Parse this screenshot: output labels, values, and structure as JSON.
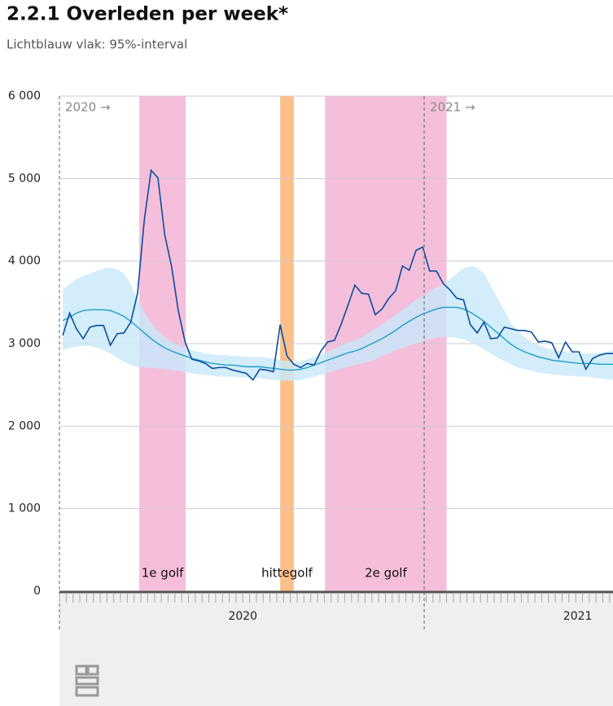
{
  "chart_data": {
    "type": "line",
    "title": "2.2.1 Overleden per week*",
    "subtitle": "Lichtblauw vlak: 95%-interval",
    "x": [
      1,
      2,
      3,
      4,
      5,
      6,
      7,
      8,
      9,
      10,
      11,
      12,
      13,
      14,
      15,
      16,
      17,
      18,
      19,
      20,
      21,
      22,
      23,
      24,
      25,
      26,
      27,
      28,
      29,
      30,
      31,
      32,
      33,
      34,
      35,
      36,
      37,
      38,
      39,
      40,
      41,
      42,
      43,
      44,
      45,
      46,
      47,
      48,
      49,
      50,
      51,
      52,
      53,
      54,
      55,
      56,
      57,
      58,
      59,
      60,
      61,
      62,
      63,
      64,
      65,
      66,
      67,
      68,
      69,
      70,
      71,
      72,
      73,
      74,
      75,
      76,
      77,
      78,
      79,
      80,
      81,
      82
    ],
    "series": [
      {
        "color": "#0b4d9e",
        "values": [
          3100,
          3370,
          3180,
          3060,
          3200,
          3220,
          3220,
          2980,
          3120,
          3130,
          3260,
          3610,
          4500,
          5100,
          5010,
          4320,
          3940,
          3400,
          3020,
          2810,
          2790,
          2760,
          2700,
          2710,
          2710,
          2680,
          2660,
          2640,
          2560,
          2690,
          2680,
          2660,
          3230,
          2850,
          2750,
          2710,
          2760,
          2740,
          2910,
          3020,
          3040,
          3240,
          3470,
          3710,
          3610,
          3600,
          3350,
          3420,
          3550,
          3640,
          3940,
          3890,
          4130,
          4170,
          3880,
          3880,
          3730,
          3650,
          3550,
          3530,
          3230,
          3130,
          3260,
          3060,
          3070,
          3200,
          3180,
          3160,
          3160,
          3140,
          3020,
          3030,
          3010,
          2830,
          3020,
          2900,
          2900,
          2690,
          2820,
          2860,
          2880,
          2880
        ]
      },
      {
        "color": "#1ba0c8",
        "values": [
          3280,
          3320,
          3370,
          3400,
          3410,
          3410,
          3410,
          3400,
          3370,
          3330,
          3270,
          3200,
          3130,
          3060,
          3000,
          2950,
          2910,
          2880,
          2850,
          2820,
          2800,
          2780,
          2760,
          2750,
          2740,
          2740,
          2730,
          2720,
          2720,
          2720,
          2710,
          2700,
          2690,
          2680,
          2680,
          2690,
          2710,
          2740,
          2770,
          2800,
          2830,
          2860,
          2890,
          2910,
          2940,
          2980,
          3020,
          3060,
          3110,
          3160,
          3220,
          3270,
          3320,
          3360,
          3390,
          3420,
          3440,
          3440,
          3440,
          3420,
          3380,
          3330,
          3270,
          3200,
          3130,
          3060,
          2990,
          2940,
          2900,
          2870,
          2840,
          2820,
          2800,
          2790,
          2780,
          2770,
          2760,
          2760,
          2760,
          2750,
          2750,
          2750
        ]
      }
    ],
    "band": {
      "color": "#c8e8fa",
      "upper": [
        3650,
        3720,
        3780,
        3820,
        3850,
        3880,
        3910,
        3920,
        3900,
        3850,
        3720,
        3550,
        3380,
        3250,
        3150,
        3080,
        3020,
        2980,
        2950,
        2920,
        2900,
        2880,
        2870,
        2860,
        2860,
        2850,
        2850,
        2840,
        2840,
        2840,
        2830,
        2820,
        2800,
        2790,
        2780,
        2790,
        2810,
        2840,
        2870,
        2900,
        2940,
        2980,
        3010,
        3040,
        3080,
        3130,
        3180,
        3230,
        3290,
        3350,
        3410,
        3470,
        3530,
        3580,
        3630,
        3680,
        3720,
        3780,
        3850,
        3910,
        3940,
        3920,
        3850,
        3700,
        3550,
        3400,
        3250,
        3150,
        3080,
        3020,
        2980,
        2950,
        2930,
        2910,
        2900,
        2890,
        2880,
        2880,
        2880,
        2890,
        2900,
        2920
      ],
      "lower": [
        2920,
        2950,
        2960,
        2970,
        2970,
        2950,
        2920,
        2880,
        2830,
        2780,
        2740,
        2720,
        2710,
        2710,
        2700,
        2690,
        2680,
        2670,
        2650,
        2640,
        2630,
        2620,
        2610,
        2600,
        2600,
        2600,
        2590,
        2590,
        2590,
        2580,
        2570,
        2560,
        2550,
        2550,
        2550,
        2560,
        2580,
        2600,
        2620,
        2650,
        2670,
        2700,
        2720,
        2740,
        2760,
        2780,
        2810,
        2850,
        2880,
        2920,
        2950,
        2980,
        3000,
        3030,
        3050,
        3070,
        3080,
        3080,
        3070,
        3050,
        3020,
        2980,
        2930,
        2880,
        2830,
        2790,
        2750,
        2710,
        2690,
        2670,
        2650,
        2640,
        2630,
        2620,
        2610,
        2610,
        2600,
        2600,
        2590,
        2580,
        2570,
        2560
      ]
    },
    "regions": [
      {
        "label": "1e golf",
        "from": 12.25,
        "to": 19.1,
        "color": "#f5bfdb"
      },
      {
        "label": "hittegolf",
        "from": 33.0,
        "to": 35.0,
        "color": "#fdc08a"
      },
      {
        "label": "2e golf",
        "from": 39.6,
        "to": 57.5,
        "color": "#f5bfdb"
      }
    ],
    "annotations": [
      {
        "x": 0.5,
        "text": "2020 →"
      },
      {
        "x": 54.2,
        "text": "2021 →"
      }
    ],
    "xlim": [
      0.5,
      82
    ],
    "xticks": [
      {
        "value": 27.5,
        "label": "2020"
      },
      {
        "value": 76.8,
        "label": "2021"
      }
    ],
    "ylim": [
      0,
      6000
    ],
    "yticks": [
      0,
      {
        "value": 1000,
        "label": "1 000"
      },
      {
        "value": 2000,
        "label": "2 000"
      },
      {
        "value": 3000,
        "label": "3 000"
      },
      {
        "value": 4000,
        "label": "4 000"
      },
      {
        "value": 5000,
        "label": "5 000"
      },
      {
        "value": 6000,
        "label": "6 000"
      }
    ],
    "grid": true
  }
}
